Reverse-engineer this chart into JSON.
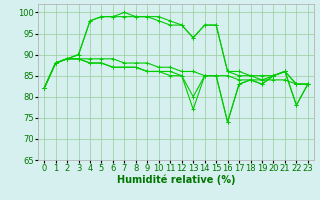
{
  "x": [
    0,
    1,
    2,
    3,
    4,
    5,
    6,
    7,
    8,
    9,
    10,
    11,
    12,
    13,
    14,
    15,
    16,
    17,
    18,
    19,
    20,
    21,
    22,
    23
  ],
  "series": [
    [
      82,
      88,
      89,
      90,
      98,
      99,
      99,
      100,
      99,
      99,
      99,
      98,
      97,
      94,
      97,
      97,
      86,
      86,
      85,
      85,
      85,
      86,
      83,
      83
    ],
    [
      82,
      88,
      89,
      90,
      98,
      99,
      99,
      99,
      99,
      99,
      98,
      97,
      97,
      94,
      97,
      97,
      86,
      85,
      85,
      84,
      85,
      86,
      83,
      83
    ],
    [
      82,
      88,
      89,
      89,
      89,
      89,
      89,
      88,
      88,
      88,
      87,
      87,
      86,
      86,
      85,
      85,
      85,
      84,
      84,
      84,
      84,
      84,
      83,
      83
    ],
    [
      82,
      88,
      89,
      89,
      88,
      88,
      87,
      87,
      87,
      86,
      86,
      86,
      85,
      80,
      85,
      85,
      74,
      83,
      84,
      83,
      85,
      86,
      78,
      83
    ],
    [
      82,
      88,
      89,
      89,
      88,
      88,
      87,
      87,
      87,
      86,
      86,
      85,
      85,
      77,
      85,
      85,
      74,
      83,
      84,
      83,
      85,
      86,
      78,
      83
    ]
  ],
  "line_color": "#00cc00",
  "marker": "+",
  "markersize": 3,
  "linewidth": 0.8,
  "bg_color": "#d5f0ee",
  "grid_color": "#99cc99",
  "axis_label_color": "#007700",
  "tick_label_color": "#007700",
  "xlabel": "Humidité relative (%)",
  "ylim": [
    65,
    102
  ],
  "yticks": [
    65,
    70,
    75,
    80,
    85,
    90,
    95,
    100
  ],
  "xlim": [
    -0.5,
    23.5
  ],
  "xlabel_fontsize": 7,
  "tick_fontsize": 6,
  "markeredgewidth": 0.7
}
